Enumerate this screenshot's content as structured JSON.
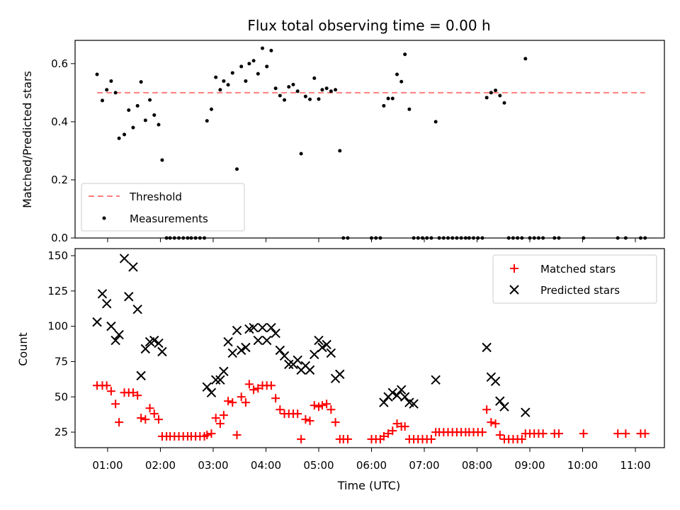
{
  "chart_data": [
    {
      "type": "scatter",
      "title": "Flux total observing time = 0.00 h",
      "xlabel": "",
      "ylabel": "Matched/Predicted stars",
      "xlim": [
        "00:23",
        "11:33"
      ],
      "ylim": [
        0,
        0.68
      ],
      "yticks": [
        "0.0",
        "0.2",
        "0.4",
        "0.6"
      ],
      "threshold": 0.5,
      "legend_position": "lower-left",
      "legend": {
        "threshold": "Threshold",
        "measurements": "Measurements"
      },
      "colors": {
        "threshold": "#ff7f7f",
        "measurements": "#000000"
      },
      "measurements": [
        [
          "00:48",
          0.563
        ],
        [
          "00:54",
          0.473
        ],
        [
          "00:59",
          0.51
        ],
        [
          "01:04",
          0.54
        ],
        [
          "01:09",
          0.5
        ],
        [
          "01:13",
          0.343
        ],
        [
          "01:19",
          0.356
        ],
        [
          "01:24",
          0.44
        ],
        [
          "01:29",
          0.38
        ],
        [
          "01:34",
          0.455
        ],
        [
          "01:38",
          0.537
        ],
        [
          "01:43",
          0.405
        ],
        [
          "01:48",
          0.475
        ],
        [
          "01:53",
          0.423
        ],
        [
          "01:58",
          0.39
        ],
        [
          "02:02",
          0.268
        ],
        [
          "02:07",
          0
        ],
        [
          "02:11",
          0
        ],
        [
          "02:16",
          0
        ],
        [
          "02:21",
          0
        ],
        [
          "02:26",
          0
        ],
        [
          "02:31",
          0
        ],
        [
          "02:35",
          0
        ],
        [
          "02:40",
          0
        ],
        [
          "02:45",
          0
        ],
        [
          "02:50",
          0
        ],
        [
          "02:53",
          0.403
        ],
        [
          "02:58",
          0.443
        ],
        [
          "03:03",
          0.553
        ],
        [
          "03:08",
          0.51
        ],
        [
          "03:12",
          0.54
        ],
        [
          "03:17",
          0.527
        ],
        [
          "03:22",
          0.568
        ],
        [
          "03:27",
          0.237
        ],
        [
          "03:32",
          0.59
        ],
        [
          "03:37",
          0.54
        ],
        [
          "03:41",
          0.6
        ],
        [
          "03:46",
          0.61
        ],
        [
          "03:51",
          0.565
        ],
        [
          "03:56",
          0.653
        ],
        [
          "04:01",
          0.59
        ],
        [
          "04:06",
          0.645
        ],
        [
          "04:11",
          0.515
        ],
        [
          "04:16",
          0.49
        ],
        [
          "04:21",
          0.475
        ],
        [
          "04:26",
          0.52
        ],
        [
          "04:31",
          0.528
        ],
        [
          "04:36",
          0.505
        ],
        [
          "04:40",
          0.29
        ],
        [
          "04:45",
          0.487
        ],
        [
          "04:50",
          0.477
        ],
        [
          "04:55",
          0.55
        ],
        [
          "05:00",
          0.478
        ],
        [
          "05:04",
          0.51
        ],
        [
          "05:09",
          0.515
        ],
        [
          "05:14",
          0.505
        ],
        [
          "05:19",
          0.51
        ],
        [
          "05:24",
          0.3
        ],
        [
          "05:28",
          0
        ],
        [
          "05:33",
          0
        ],
        [
          "06:00",
          0
        ],
        [
          "06:05",
          0
        ],
        [
          "06:10",
          0
        ],
        [
          "06:14",
          0.455
        ],
        [
          "06:19",
          0.48
        ],
        [
          "06:24",
          0.48
        ],
        [
          "06:29",
          0.563
        ],
        [
          "06:34",
          0.538
        ],
        [
          "06:38",
          0.632
        ],
        [
          "06:43",
          0.443
        ],
        [
          "06:48",
          0
        ],
        [
          "06:53",
          0
        ],
        [
          "06:58",
          0
        ],
        [
          "07:03",
          0
        ],
        [
          "07:08",
          0
        ],
        [
          "07:13",
          0.4
        ],
        [
          "07:17",
          0
        ],
        [
          "07:22",
          0
        ],
        [
          "07:27",
          0
        ],
        [
          "07:32",
          0
        ],
        [
          "07:37",
          0
        ],
        [
          "07:42",
          0
        ],
        [
          "07:47",
          0
        ],
        [
          "07:51",
          0
        ],
        [
          "07:56",
          0
        ],
        [
          "08:01",
          0
        ],
        [
          "08:06",
          0
        ],
        [
          "08:11",
          0.483
        ],
        [
          "08:16",
          0.5
        ],
        [
          "08:21",
          0.508
        ],
        [
          "08:26",
          0.49
        ],
        [
          "08:31",
          0.465
        ],
        [
          "08:36",
          0
        ],
        [
          "08:41",
          0
        ],
        [
          "08:46",
          0
        ],
        [
          "08:51",
          0
        ],
        [
          "08:55",
          0.617
        ],
        [
          "09:00",
          0
        ],
        [
          "09:05",
          0
        ],
        [
          "09:10",
          0
        ],
        [
          "09:15",
          0
        ],
        [
          "09:28",
          0
        ],
        [
          "09:33",
          0
        ],
        [
          "10:01",
          0
        ],
        [
          "10:40",
          0
        ],
        [
          "10:49",
          0
        ],
        [
          "11:06",
          0
        ],
        [
          "11:11",
          0
        ]
      ]
    },
    {
      "type": "scatter",
      "title": "",
      "xlabel": "Time (UTC)",
      "ylabel": "Count",
      "xlim": [
        "00:23",
        "11:33"
      ],
      "ylim": [
        14,
        155
      ],
      "yticks": [
        "25",
        "50",
        "75",
        "100",
        "125",
        "150"
      ],
      "xticks": [
        "01:00",
        "02:00",
        "03:00",
        "04:00",
        "05:00",
        "06:00",
        "07:00",
        "08:00",
        "09:00",
        "10:00",
        "11:00"
      ],
      "legend_position": "top-right",
      "legend": {
        "matched": "Matched stars",
        "predicted": "Predicted stars"
      },
      "colors": {
        "matched": "#ff0000",
        "predicted": "#000000"
      },
      "matched": [
        [
          "00:48",
          58
        ],
        [
          "00:54",
          58
        ],
        [
          "00:59",
          58
        ],
        [
          "01:04",
          54
        ],
        [
          "01:09",
          45
        ],
        [
          "01:13",
          32
        ],
        [
          "01:19",
          53
        ],
        [
          "01:24",
          53
        ],
        [
          "01:29",
          53
        ],
        [
          "01:34",
          51
        ],
        [
          "01:38",
          35
        ],
        [
          "01:43",
          34
        ],
        [
          "01:48",
          42
        ],
        [
          "01:53",
          38
        ],
        [
          "01:58",
          34
        ],
        [
          "02:02",
          22
        ],
        [
          "02:07",
          22
        ],
        [
          "02:11",
          22
        ],
        [
          "02:16",
          22
        ],
        [
          "02:21",
          22
        ],
        [
          "02:26",
          22
        ],
        [
          "02:31",
          22
        ],
        [
          "02:35",
          22
        ],
        [
          "02:40",
          22
        ],
        [
          "02:45",
          22
        ],
        [
          "02:50",
          22
        ],
        [
          "02:53",
          23
        ],
        [
          "02:58",
          24
        ],
        [
          "03:03",
          35
        ],
        [
          "03:08",
          31
        ],
        [
          "03:12",
          37
        ],
        [
          "03:17",
          47
        ],
        [
          "03:22",
          46
        ],
        [
          "03:27",
          23
        ],
        [
          "03:32",
          50
        ],
        [
          "03:37",
          46
        ],
        [
          "03:41",
          59
        ],
        [
          "03:46",
          55
        ],
        [
          "03:51",
          56
        ],
        [
          "03:56",
          58
        ],
        [
          "04:01",
          58
        ],
        [
          "04:06",
          58
        ],
        [
          "04:11",
          49
        ],
        [
          "04:16",
          41
        ],
        [
          "04:21",
          38
        ],
        [
          "04:26",
          38
        ],
        [
          "04:31",
          38
        ],
        [
          "04:36",
          38
        ],
        [
          "04:40",
          20
        ],
        [
          "04:45",
          34
        ],
        [
          "04:50",
          33
        ],
        [
          "04:55",
          44
        ],
        [
          "05:00",
          43
        ],
        [
          "05:04",
          44
        ],
        [
          "05:09",
          45
        ],
        [
          "05:14",
          41
        ],
        [
          "05:19",
          32
        ],
        [
          "05:24",
          20
        ],
        [
          "05:28",
          20
        ],
        [
          "05:33",
          20
        ],
        [
          "06:00",
          20
        ],
        [
          "06:05",
          20
        ],
        [
          "06:10",
          20
        ],
        [
          "06:14",
          22
        ],
        [
          "06:19",
          24
        ],
        [
          "06:24",
          26
        ],
        [
          "06:29",
          31
        ],
        [
          "06:34",
          29
        ],
        [
          "06:38",
          29
        ],
        [
          "06:43",
          20
        ],
        [
          "06:48",
          20
        ],
        [
          "06:53",
          20
        ],
        [
          "06:58",
          20
        ],
        [
          "07:03",
          20
        ],
        [
          "07:08",
          20
        ],
        [
          "07:13",
          25
        ],
        [
          "07:17",
          25
        ],
        [
          "07:22",
          25
        ],
        [
          "07:27",
          25
        ],
        [
          "07:32",
          25
        ],
        [
          "07:37",
          25
        ],
        [
          "07:42",
          25
        ],
        [
          "07:47",
          25
        ],
        [
          "07:51",
          25
        ],
        [
          "07:56",
          25
        ],
        [
          "08:01",
          25
        ],
        [
          "08:06",
          25
        ],
        [
          "08:11",
          41
        ],
        [
          "08:16",
          32
        ],
        [
          "08:21",
          31
        ],
        [
          "08:26",
          23
        ],
        [
          "08:31",
          20
        ],
        [
          "08:36",
          20
        ],
        [
          "08:41",
          20
        ],
        [
          "08:46",
          20
        ],
        [
          "08:51",
          20
        ],
        [
          "08:55",
          24
        ],
        [
          "09:00",
          24
        ],
        [
          "09:05",
          24
        ],
        [
          "09:10",
          24
        ],
        [
          "09:15",
          24
        ],
        [
          "09:28",
          24
        ],
        [
          "09:33",
          24
        ],
        [
          "10:01",
          24
        ],
        [
          "10:40",
          24
        ],
        [
          "10:49",
          24
        ],
        [
          "11:06",
          24
        ],
        [
          "11:11",
          24
        ]
      ],
      "predicted": [
        [
          "00:48",
          103
        ],
        [
          "00:54",
          123
        ],
        [
          "00:59",
          116
        ],
        [
          "01:04",
          100
        ],
        [
          "01:09",
          90
        ],
        [
          "01:13",
          94
        ],
        [
          "01:19",
          148
        ],
        [
          "01:24",
          121
        ],
        [
          "01:29",
          142
        ],
        [
          "01:34",
          112
        ],
        [
          "01:38",
          65
        ],
        [
          "01:43",
          84
        ],
        [
          "01:48",
          89
        ],
        [
          "01:53",
          90
        ],
        [
          "01:58",
          88
        ],
        [
          "02:02",
          82
        ],
        [
          "02:53",
          57
        ],
        [
          "02:58",
          53
        ],
        [
          "03:03",
          62
        ],
        [
          "03:08",
          62
        ],
        [
          "03:12",
          68
        ],
        [
          "03:17",
          89
        ],
        [
          "03:22",
          81
        ],
        [
          "03:27",
          97
        ],
        [
          "03:32",
          83
        ],
        [
          "03:37",
          85
        ],
        [
          "03:41",
          98
        ],
        [
          "03:46",
          99
        ],
        [
          "03:51",
          90
        ],
        [
          "03:56",
          99
        ],
        [
          "04:01",
          90
        ],
        [
          "04:06",
          99
        ],
        [
          "04:11",
          95
        ],
        [
          "04:16",
          83
        ],
        [
          "04:21",
          79
        ],
        [
          "04:26",
          73
        ],
        [
          "04:31",
          73
        ],
        [
          "04:36",
          76
        ],
        [
          "04:40",
          69
        ],
        [
          "04:45",
          72
        ],
        [
          "04:50",
          69
        ],
        [
          "04:55",
          80
        ],
        [
          "05:00",
          90
        ],
        [
          "05:04",
          85
        ],
        [
          "05:09",
          87
        ],
        [
          "05:14",
          81
        ],
        [
          "05:19",
          63
        ],
        [
          "05:24",
          66
        ],
        [
          "06:14",
          46
        ],
        [
          "06:19",
          50
        ],
        [
          "06:24",
          53
        ],
        [
          "06:29",
          51
        ],
        [
          "06:34",
          55
        ],
        [
          "06:38",
          50
        ],
        [
          "06:43",
          46
        ],
        [
          "06:48",
          45
        ],
        [
          "07:13",
          62
        ],
        [
          "08:11",
          85
        ],
        [
          "08:16",
          64
        ],
        [
          "08:21",
          61
        ],
        [
          "08:26",
          47
        ],
        [
          "08:31",
          43
        ],
        [
          "08:55",
          39
        ]
      ]
    }
  ]
}
